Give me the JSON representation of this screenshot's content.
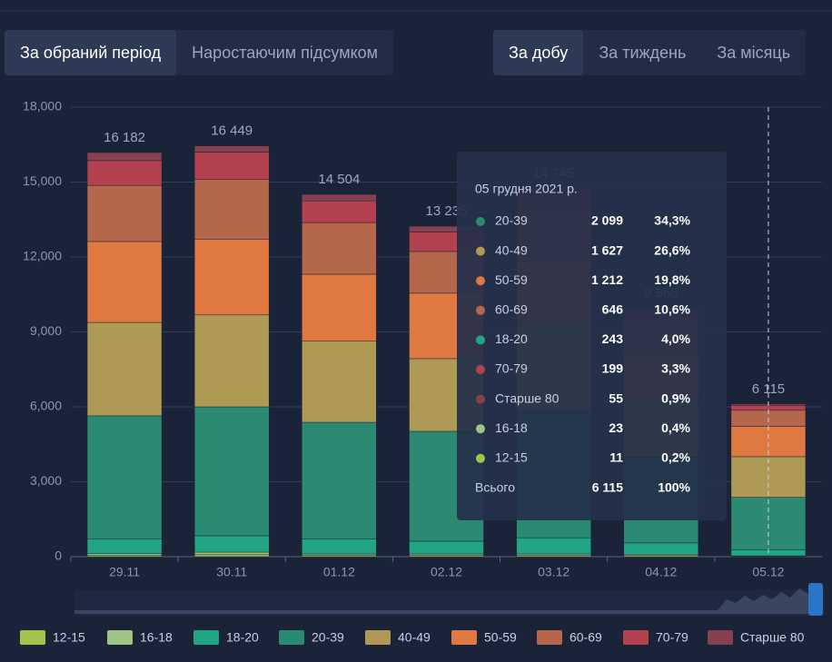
{
  "tabs": [
    "За обраний період",
    "Наростаючим підсумком"
  ],
  "periods": [
    "За добу",
    "За тиждень",
    "За місяць"
  ],
  "chart_data": {
    "type": "stacked-bar",
    "categories": [
      "29.11",
      "30.11",
      "01.12",
      "02.12",
      "03.12",
      "04.12",
      "05.12"
    ],
    "series": [
      {
        "name": "12-15",
        "color": "#a4c34c",
        "values": [
          50,
          80,
          50,
          50,
          50,
          50,
          11
        ]
      },
      {
        "name": "16-18",
        "color": "#9ec585",
        "values": [
          70,
          100,
          60,
          60,
          60,
          50,
          23
        ]
      },
      {
        "name": "18-20",
        "color": "#22a585",
        "values": [
          580,
          660,
          590,
          510,
          650,
          450,
          243
        ]
      },
      {
        "name": "20-39",
        "color": "#2d8a72",
        "values": [
          4940,
          5160,
          4680,
          4400,
          5100,
          3440,
          2099
        ]
      },
      {
        "name": "40-49",
        "color": "#ae9a55",
        "values": [
          3740,
          3680,
          3250,
          2910,
          3410,
          2300,
          1627
        ]
      },
      {
        "name": "50-59",
        "color": "#e07842",
        "values": [
          3240,
          3020,
          2680,
          2620,
          2580,
          1820,
          1212
        ]
      },
      {
        "name": "60-69",
        "color": "#b4674b",
        "values": [
          2250,
          2400,
          2070,
          1670,
          2080,
          1200,
          646
        ]
      },
      {
        "name": "70-79",
        "color": "#b3414f",
        "values": [
          990,
          1100,
          870,
          780,
          570,
          440,
          199
        ]
      },
      {
        "name": "Старше 80",
        "color": "#86404f",
        "values": [
          322,
          249,
          254,
          235,
          245,
          215,
          55
        ]
      }
    ],
    "totals": [
      16182,
      16449,
      14504,
      13235,
      14745,
      9965,
      6115
    ],
    "total_labels": [
      "16 182",
      "16 449",
      "14 504",
      "13 235",
      "14 745",
      "9 965",
      "6 115"
    ],
    "ylim": [
      0,
      18000
    ],
    "yticks": [
      0,
      {
        "value": 3000,
        "label": "3,000"
      },
      {
        "value": 6000,
        "label": "6,000"
      },
      {
        "value": 9000,
        "label": "9,000"
      },
      {
        "value": 12000,
        "label": "12,000"
      },
      {
        "value": 15000,
        "label": "15,000"
      },
      {
        "value": 18000,
        "label": "18,000"
      }
    ],
    "grid": true
  },
  "tooltip": {
    "date": "05 грудня 2021 р.",
    "rows": [
      {
        "name": "20-39",
        "value": "2 099",
        "share": "34,3%"
      },
      {
        "name": "40-49",
        "value": "1 627",
        "share": "26,6%"
      },
      {
        "name": "50-59",
        "value": "1 212",
        "share": "19,8%"
      },
      {
        "name": "60-69",
        "value": "646",
        "share": "10,6%"
      },
      {
        "name": "18-20",
        "value": "243",
        "share": "4,0%"
      },
      {
        "name": "70-79",
        "value": "199",
        "share": "3,3%"
      },
      {
        "name": "Старше 80",
        "value": "55",
        "share": "0,9%"
      },
      {
        "name": "16-18",
        "value": "23",
        "share": "0,4%"
      },
      {
        "name": "12-15",
        "value": "11",
        "share": "0,2%"
      }
    ],
    "total": {
      "name": "Всього",
      "value": "6 115",
      "share": "100%"
    }
  }
}
